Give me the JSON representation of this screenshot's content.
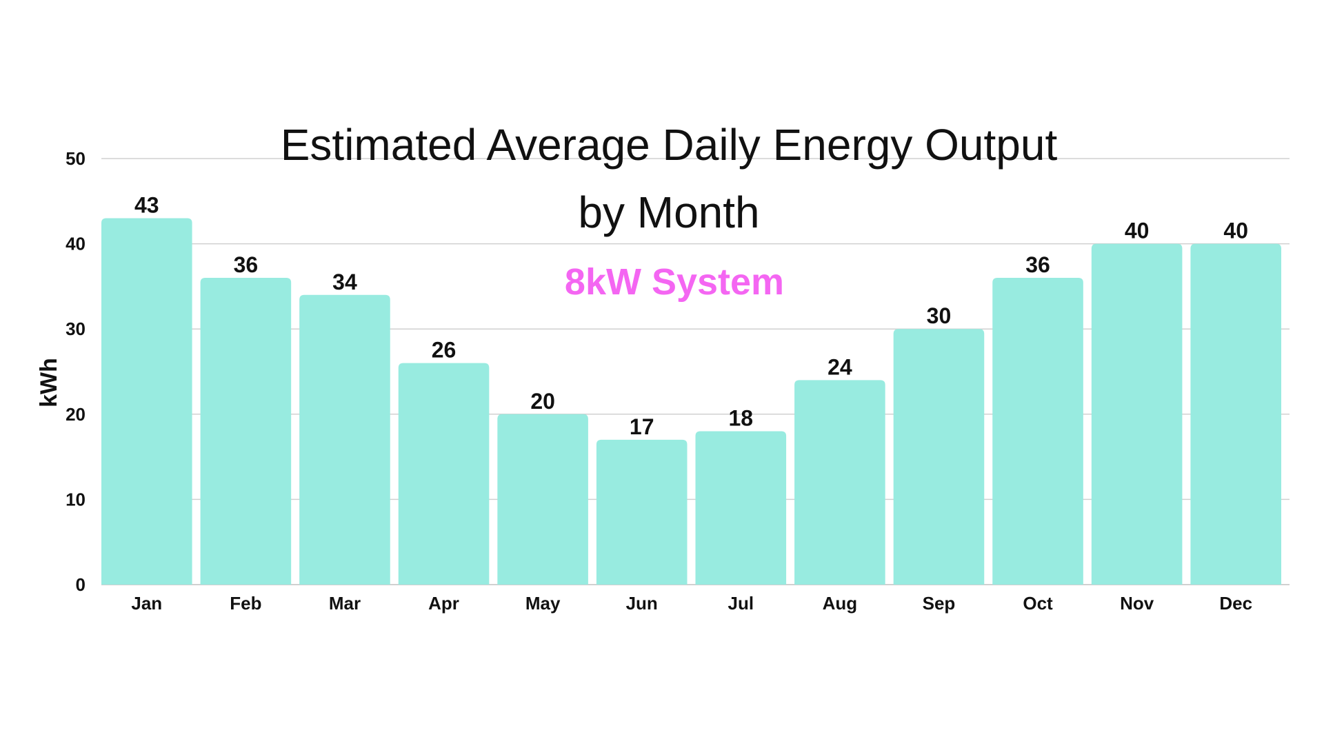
{
  "chart_data": {
    "type": "bar",
    "title_lines": [
      "Estimated Average Daily Energy Output",
      "by Month"
    ],
    "subtitle": "8kW System",
    "xlabel": "",
    "ylabel": "kWh",
    "ylim": [
      0,
      50
    ],
    "yticks": [
      "0",
      "10",
      "20",
      "30",
      "40",
      "50"
    ],
    "grid": true,
    "categories": [
      "Jan",
      "Feb",
      "Mar",
      "Apr",
      "May",
      "Jun",
      "Jul",
      "Aug",
      "Sep",
      "Oct",
      "Nov",
      "Dec"
    ],
    "series": [
      {
        "values": [
          43,
          36,
          34,
          26,
          20,
          17,
          18,
          24,
          30,
          36,
          40,
          40
        ],
        "color": "#98EBE0"
      }
    ],
    "data_labels": [
      "43",
      "36",
      "34",
      "26",
      "20",
      "17",
      "18",
      "24",
      "30",
      "36",
      "40",
      "40"
    ]
  },
  "colors": {
    "background": "#ffffff",
    "gridline": "#d0d0d0",
    "text": "#111111",
    "subtitle": "#F466F2",
    "bar": "#98EBE0"
  }
}
